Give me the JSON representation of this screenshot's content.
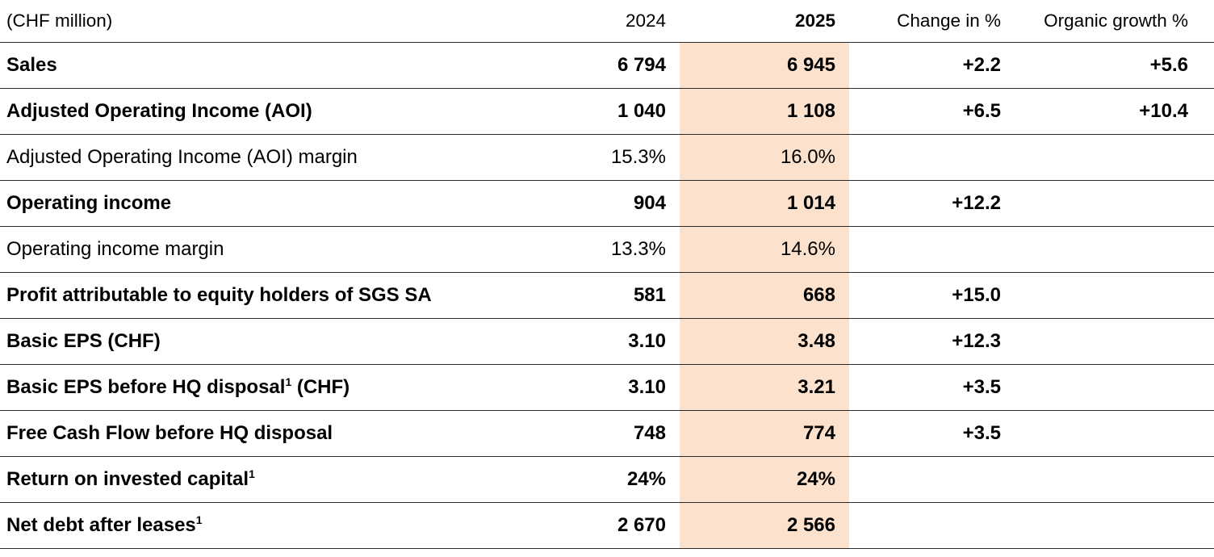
{
  "colors": {
    "highlight_2025_column": "#fce2cd",
    "rule_line": "#2b2b2b",
    "text": "#000000"
  },
  "header": {
    "unit_label": "(CHF million)",
    "columns": {
      "y2024": "2024",
      "y2025": "2025",
      "change": "Change in %",
      "organic": "Organic growth %"
    }
  },
  "rows": [
    {
      "label": "Sales",
      "sup": "",
      "label_after": "",
      "bold": true,
      "v2024": "6 794",
      "v2025": "6 945",
      "change": "+2.2",
      "organic": "+5.6"
    },
    {
      "label": "Adjusted Operating Income (AOI)",
      "sup": "",
      "label_after": "",
      "bold": true,
      "v2024": "1 040",
      "v2025": "1 108",
      "change": "+6.5",
      "organic": "+10.4"
    },
    {
      "label": "Adjusted Operating Income (AOI) margin",
      "sup": "",
      "label_after": "",
      "bold": false,
      "v2024": "15.3%",
      "v2025": "16.0%",
      "change": "",
      "organic": ""
    },
    {
      "label": "Operating income",
      "sup": "",
      "label_after": "",
      "bold": true,
      "v2024": "904",
      "v2025": "1 014",
      "change": "+12.2",
      "organic": ""
    },
    {
      "label": "Operating income margin",
      "sup": "",
      "label_after": "",
      "bold": false,
      "v2024": "13.3%",
      "v2025": "14.6%",
      "change": "",
      "organic": ""
    },
    {
      "label": "Profit attributable to equity holders of SGS SA",
      "sup": "",
      "label_after": "",
      "bold": true,
      "v2024": "581",
      "v2025": "668",
      "change": "+15.0",
      "organic": ""
    },
    {
      "label": "Basic EPS (CHF)",
      "sup": "",
      "label_after": "",
      "bold": true,
      "v2024": "3.10",
      "v2025": "3.48",
      "change": "+12.3",
      "organic": ""
    },
    {
      "label": "Basic EPS before HQ disposal",
      "sup": "1",
      "label_after": " (CHF)",
      "bold": true,
      "v2024": "3.10",
      "v2025": "3.21",
      "change": "+3.5",
      "organic": ""
    },
    {
      "label": "Free Cash Flow before HQ disposal",
      "sup": "",
      "label_after": "",
      "bold": true,
      "v2024": "748",
      "v2025": "774",
      "change": "+3.5",
      "organic": ""
    },
    {
      "label": "Return on invested capital",
      "sup": "1",
      "label_after": "",
      "bold": true,
      "v2024": "24%",
      "v2025": "24%",
      "change": "",
      "organic": ""
    },
    {
      "label": "Net debt after leases",
      "sup": "1",
      "label_after": "",
      "bold": true,
      "v2024": "2 670",
      "v2025": "2 566",
      "change": "",
      "organic": ""
    }
  ]
}
